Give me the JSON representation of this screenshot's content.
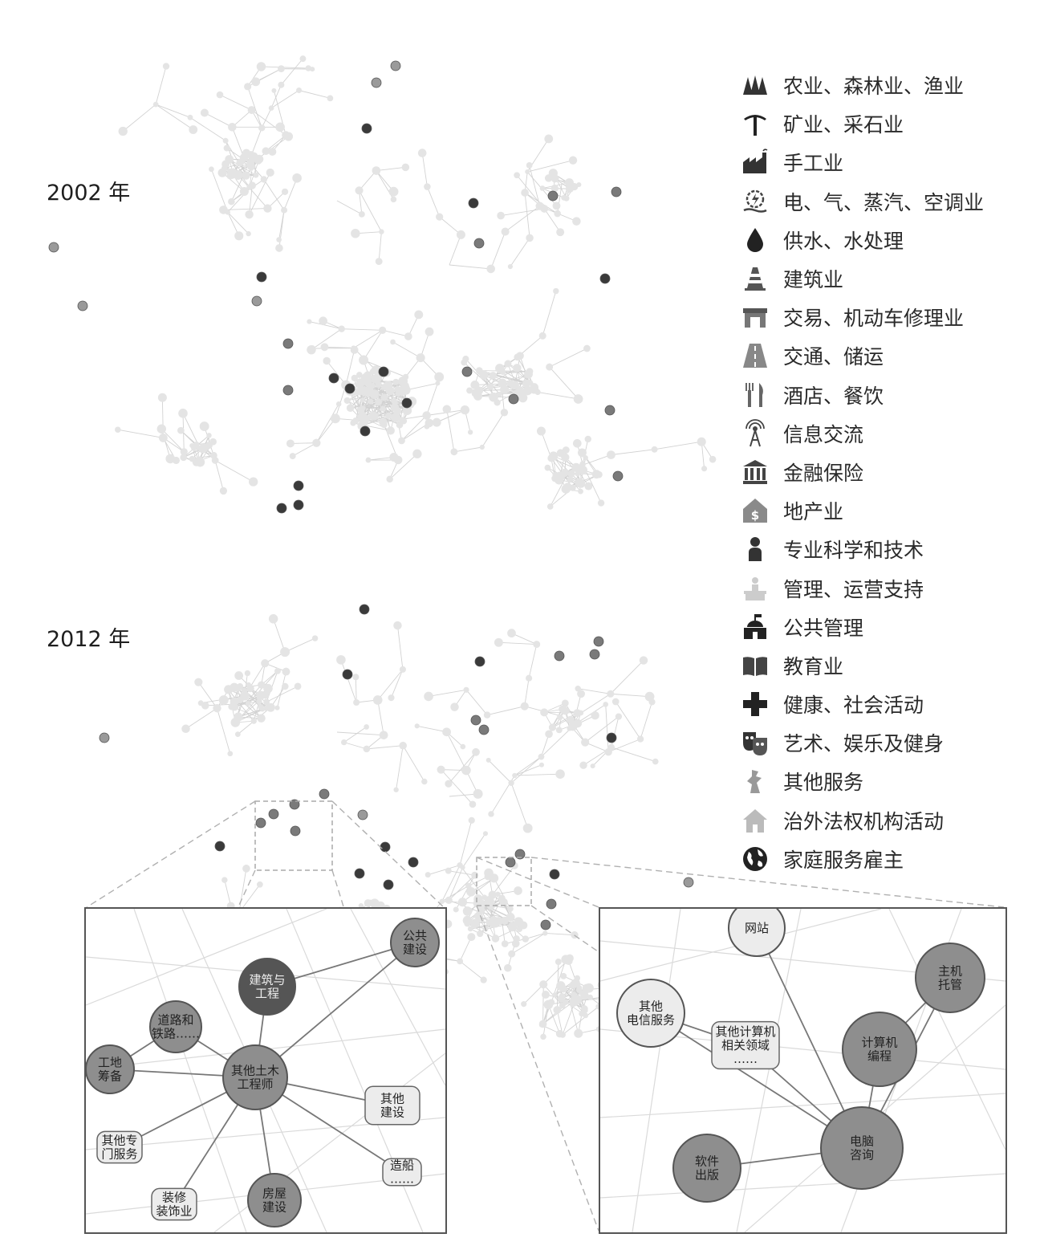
{
  "years": {
    "first": "2002 年",
    "second": "2012 年"
  },
  "legend": [
    {
      "label": "农业、森林业、渔业",
      "icon": "trees-icon"
    },
    {
      "label": "矿业、采石业",
      "icon": "pickaxe-icon"
    },
    {
      "label": "手工业",
      "icon": "factory-icon"
    },
    {
      "label": "电、气、蒸汽、空调业",
      "icon": "power-icon"
    },
    {
      "label": "供水、水处理",
      "icon": "water-drop-icon"
    },
    {
      "label": "建筑业",
      "icon": "traffic-cone-icon"
    },
    {
      "label": "交易、机动车修理业",
      "icon": "storefront-icon"
    },
    {
      "label": "交通、储运",
      "icon": "road-icon"
    },
    {
      "label": "酒店、餐饮",
      "icon": "fork-knife-icon"
    },
    {
      "label": "信息交流",
      "icon": "antenna-icon"
    },
    {
      "label": "金融保险",
      "icon": "bank-icon"
    },
    {
      "label": "地产业",
      "icon": "house-dollar-icon"
    },
    {
      "label": "专业科学和技术",
      "icon": "person-icon"
    },
    {
      "label": "管理、运营支持",
      "icon": "desk-icon"
    },
    {
      "label": "公共管理",
      "icon": "capitol-icon"
    },
    {
      "label": "教育业",
      "icon": "book-icon"
    },
    {
      "label": "健康、社会活动",
      "icon": "cross-icon"
    },
    {
      "label": "艺术、娱乐及健身",
      "icon": "theater-masks-icon"
    },
    {
      "label": "其他服务",
      "icon": "other-service-icon"
    },
    {
      "label": "治外法权机构活动",
      "icon": "home-icon"
    },
    {
      "label": "家庭服务雇主",
      "icon": "globe-icon"
    }
  ],
  "inset_left": {
    "nodes": {
      "public": "公共\n建设",
      "construction": "建筑与\n工程",
      "road": "道路和\n铁路……",
      "site": "工地\n筹备",
      "civil": "其他土木\n工程师",
      "other_build": "其他\n建设",
      "special": "其他专\n门服务",
      "decor": "装修\n装饰业",
      "house": "房屋\n建设",
      "ship": "造船\n……"
    }
  },
  "inset_right": {
    "nodes": {
      "web": "网站",
      "telecom": "其他\n电信服务",
      "comp_rel": "其他计算机\n相关领域\n……",
      "hosting": "主机\n托管",
      "programming": "计算机\n编程",
      "software": "软件\n出版",
      "consult": "电脑\n咨询"
    }
  },
  "colors": {
    "edge": "#d2d2d2",
    "node_light": "#e4e4e4",
    "node_mid": "#9a9a9a",
    "node_dark": "#3a3a3a",
    "node_grey": "#7a7a7a",
    "inset_dark": "#6f6f6f",
    "inset_mid": "#8e8e8e",
    "inset_light": "#ececec"
  }
}
